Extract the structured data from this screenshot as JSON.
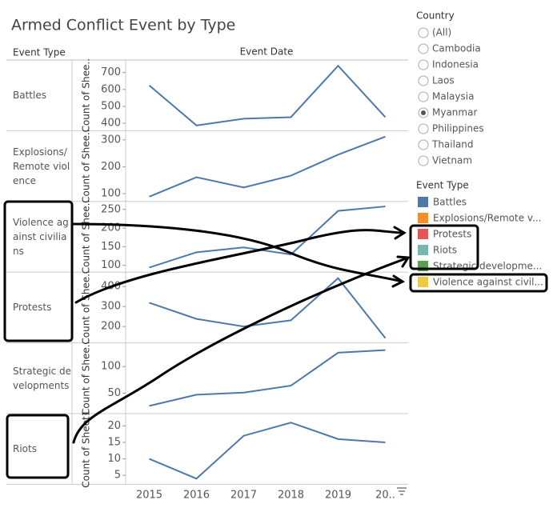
{
  "title": "Armed Conflict Event by Type",
  "header": {
    "row_label": "Event Type",
    "col_label": "Event Date"
  },
  "event_dates": [
    "2015",
    "2016",
    "2017",
    "2018",
    "2019",
    "20.."
  ],
  "chart_data": [
    {
      "type": "line",
      "row_label": "Battles",
      "ylabel": "Count of Shee..",
      "color": "#4e79a7",
      "values": [
        624,
        387,
        427,
        436,
        740,
        436
      ],
      "ylim": [
        370,
        760
      ],
      "yticks": [
        400,
        500,
        600,
        700
      ]
    },
    {
      "type": "line",
      "row_label": "Explosions/ Remote violence",
      "ylabel": "Count of Shee..",
      "color": "#4e79a7",
      "values": [
        89,
        161,
        123,
        167,
        245,
        312
      ],
      "ylim": [
        80,
        325
      ],
      "yticks": [
        100,
        200,
        300
      ]
    },
    {
      "type": "line",
      "row_label": "Violence against civilians",
      "ylabel": "Count of Shee..",
      "color": "#4e79a7",
      "values": [
        94,
        135,
        148,
        129,
        246,
        258
      ],
      "ylim": [
        88,
        265
      ],
      "yticks": [
        100,
        150,
        200,
        250
      ]
    },
    {
      "type": "line",
      "row_label": "Protests",
      "ylabel": "Count of Shee..",
      "color": "#4e79a7",
      "values": [
        319,
        238,
        200,
        231,
        442,
        142
      ],
      "ylim": [
        130,
        460
      ],
      "yticks": [
        200,
        300,
        400
      ]
    },
    {
      "type": "line",
      "row_label": "Strategic developments",
      "ylabel": "Count of Shee..",
      "color": "#4e79a7",
      "values": [
        26,
        47,
        51,
        64,
        126,
        131
      ],
      "ylim": [
        16,
        140
      ],
      "yticks": [
        50,
        100
      ]
    },
    {
      "type": "line",
      "row_label": "Riots",
      "ylabel": "Count of Sheet1",
      "color": "#4e79a7",
      "values": [
        10,
        4,
        17,
        21,
        16,
        15
      ],
      "ylim": [
        3,
        23
      ],
      "yticks": [
        5,
        10,
        15,
        20
      ]
    }
  ],
  "filter": {
    "title": "Country",
    "selected": "Myanmar",
    "options": [
      "(All)",
      "Cambodia",
      "Indonesia",
      "Laos",
      "Malaysia",
      "Myanmar",
      "Philippines",
      "Thailand",
      "Vietnam"
    ]
  },
  "legend": {
    "title": "Event Type",
    "items": [
      {
        "name": "Battles",
        "color": "#4e79a7"
      },
      {
        "name": "Explosions/Remote v...",
        "color": "#f28e2b"
      },
      {
        "name": "Protests",
        "color": "#e15759"
      },
      {
        "name": "Riots",
        "color": "#76b7b2"
      },
      {
        "name": "Strategic developme...",
        "color": "#59a14f"
      },
      {
        "name": "Violence against civil...",
        "color": "#edc948"
      }
    ]
  }
}
